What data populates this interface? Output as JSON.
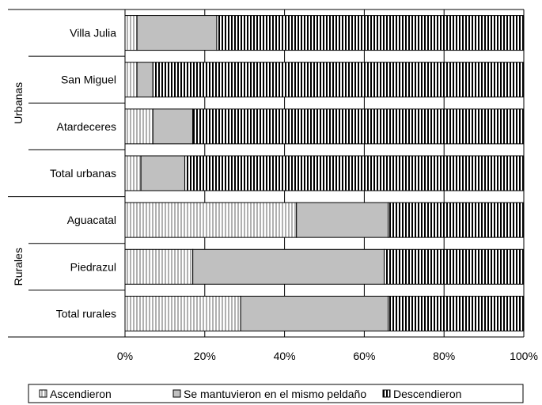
{
  "chart_data": {
    "type": "bar",
    "orientation": "horizontal",
    "stacked": "percent",
    "title": "",
    "xlabel": "",
    "ylabel": "",
    "xlim": [
      0,
      100
    ],
    "x_ticks": [
      "0%",
      "20%",
      "40%",
      "60%",
      "80%",
      "100%"
    ],
    "groups": [
      {
        "name": "Urbanas",
        "categories": [
          "Villa Julia",
          "San Miguel",
          "Atardeceres",
          "Total urbanas"
        ]
      },
      {
        "name": "Rurales",
        "categories": [
          "Aguacatal",
          "Piedrazul",
          "Total rurales"
        ]
      }
    ],
    "categories": [
      "Villa Julia",
      "San Miguel",
      "Atardeceres",
      "Total urbanas",
      "Aguacatal",
      "Piedrazul",
      "Total rurales"
    ],
    "series": [
      {
        "name": "Ascendieron",
        "pattern": "light-vertical-stripes",
        "values": [
          3,
          3,
          7,
          4,
          43,
          17,
          29
        ]
      },
      {
        "name": "Se mantuvieron en el mismo peldaño",
        "pattern": "solid-gray",
        "values": [
          20,
          4,
          10,
          11,
          23,
          48,
          37
        ]
      },
      {
        "name": "Descendieron",
        "pattern": "dark-vertical-stripes",
        "values": [
          77,
          93,
          83,
          85,
          34,
          35,
          34
        ]
      }
    ],
    "colors": {
      "gray": "#c0c0c0",
      "stripe_dark": "#000000",
      "stripe_light": "#b0b0b0",
      "outline": "#000000"
    },
    "grid": true,
    "legend_position": "bottom"
  }
}
